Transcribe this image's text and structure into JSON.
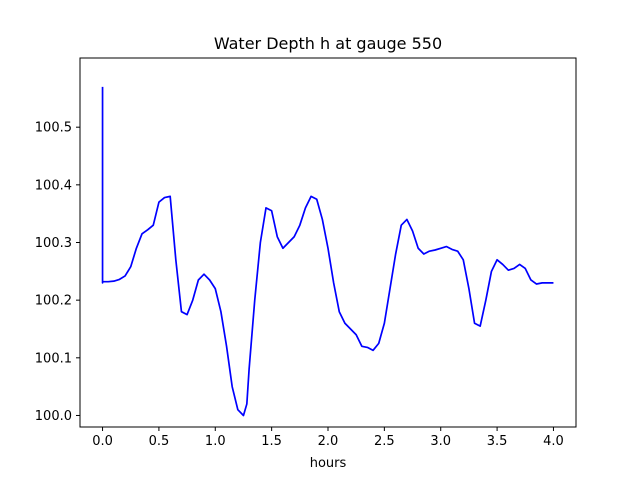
{
  "chart_data": {
    "type": "line",
    "title": "Water Depth h at gauge 550",
    "xlabel": "hours",
    "ylabel": "",
    "xlim": [
      -0.2,
      4.2
    ],
    "ylim": [
      99.98,
      100.62
    ],
    "xticks": [
      0.0,
      0.5,
      1.0,
      1.5,
      2.0,
      2.5,
      3.0,
      3.5,
      4.0
    ],
    "xtick_labels": [
      "0.0",
      "0.5",
      "1.0",
      "1.5",
      "2.0",
      "2.5",
      "3.0",
      "3.5",
      "4.0"
    ],
    "yticks": [
      100.0,
      100.1,
      100.2,
      100.3,
      100.4,
      100.5
    ],
    "ytick_labels": [
      "100.0",
      "100.1",
      "100.2",
      "100.3",
      "100.4",
      "100.5"
    ],
    "grid": false,
    "series": [
      {
        "color": "#0000ff",
        "x": [
          0.0,
          0.0,
          0.0,
          0.05,
          0.1,
          0.15,
          0.2,
          0.25,
          0.3,
          0.35,
          0.4,
          0.45,
          0.5,
          0.55,
          0.6,
          0.65,
          0.7,
          0.75,
          0.8,
          0.85,
          0.9,
          0.95,
          1.0,
          1.05,
          1.1,
          1.15,
          1.2,
          1.25,
          1.28,
          1.3,
          1.35,
          1.4,
          1.45,
          1.5,
          1.55,
          1.6,
          1.65,
          1.7,
          1.75,
          1.8,
          1.85,
          1.9,
          1.95,
          2.0,
          2.05,
          2.1,
          2.15,
          2.2,
          2.25,
          2.3,
          2.35,
          2.4,
          2.45,
          2.5,
          2.55,
          2.6,
          2.65,
          2.7,
          2.75,
          2.8,
          2.85,
          2.9,
          2.95,
          3.0,
          3.05,
          3.1,
          3.15,
          3.2,
          3.25,
          3.3,
          3.35,
          3.4,
          3.45,
          3.5,
          3.55,
          3.6,
          3.65,
          3.7,
          3.75,
          3.8,
          3.85,
          3.9,
          3.95,
          4.0
        ],
        "y": [
          100.57,
          100.23,
          100.232,
          100.232,
          100.233,
          100.236,
          100.242,
          100.258,
          100.29,
          100.315,
          100.322,
          100.33,
          100.37,
          100.378,
          100.38,
          100.27,
          100.18,
          100.175,
          100.2,
          100.235,
          100.245,
          100.235,
          100.22,
          100.18,
          100.12,
          100.05,
          100.01,
          100.0,
          100.02,
          100.08,
          100.2,
          100.3,
          100.36,
          100.355,
          100.31,
          100.29,
          100.3,
          100.31,
          100.33,
          100.36,
          100.38,
          100.375,
          100.34,
          100.29,
          100.23,
          100.18,
          100.16,
          100.15,
          100.14,
          100.12,
          100.118,
          100.113,
          100.125,
          100.16,
          100.22,
          100.28,
          100.33,
          100.34,
          100.32,
          100.29,
          100.28,
          100.285,
          100.287,
          100.29,
          100.293,
          100.288,
          100.285,
          100.27,
          100.22,
          100.16,
          100.155,
          100.2,
          100.25,
          100.27,
          100.262,
          100.252,
          100.255,
          100.262,
          100.255,
          100.235,
          100.228,
          100.23,
          100.23,
          100.23
        ]
      }
    ]
  }
}
